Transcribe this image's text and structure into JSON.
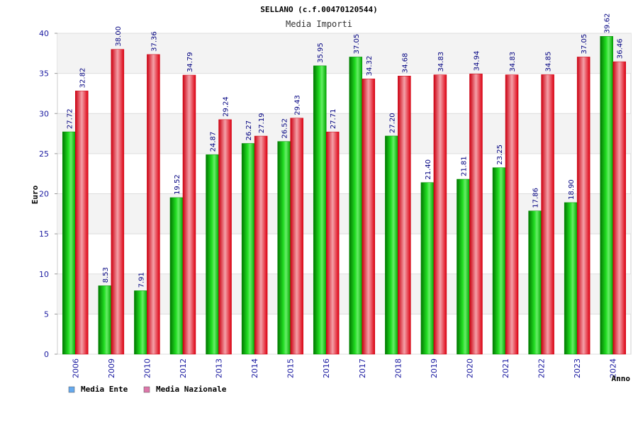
{
  "chart_data": {
    "type": "bar",
    "title": "SELLANO (c.f.00470120544)",
    "subtitle": "Media Importi",
    "xlabel": "Anno",
    "ylabel": "Euro",
    "ylim": [
      0,
      40
    ],
    "yticks": [
      "0",
      "5",
      "10",
      "15",
      "20",
      "25",
      "30",
      "35",
      "40"
    ],
    "grid": true,
    "legend_position": "bottom-left",
    "categories": [
      "2006",
      "2009",
      "2010",
      "2012",
      "2013",
      "2014",
      "2015",
      "2016",
      "2017",
      "2018",
      "2019",
      "2020",
      "2021",
      "2022",
      "2023",
      "2024"
    ],
    "series": [
      {
        "name": "Media Ente",
        "color": "#00bb00",
        "legend_color": "#66aaee",
        "values": [
          27.72,
          8.53,
          7.91,
          19.52,
          24.87,
          26.27,
          26.52,
          35.95,
          37.05,
          27.2,
          21.4,
          21.81,
          23.25,
          17.86,
          18.9,
          39.62
        ],
        "labels": [
          "27.72",
          "8.53",
          "7.91",
          "19.52",
          "24.87",
          "26.27",
          "26.52",
          "35.95",
          "37.05",
          "27.20",
          "21.40",
          "21.81",
          "23.25",
          "17.86",
          "18.90",
          "39.62"
        ]
      },
      {
        "name": "Media Nazionale",
        "color": "#ee1122",
        "legend_color": "#dd77aa",
        "values": [
          32.82,
          38.0,
          37.36,
          34.79,
          29.24,
          27.19,
          29.43,
          27.71,
          34.32,
          34.68,
          34.83,
          34.94,
          34.83,
          34.85,
          37.05,
          36.46
        ],
        "labels": [
          "32.82",
          "38.00",
          "37.36",
          "34.79",
          "29.24",
          "27.19",
          "29.43",
          "27.71",
          "34.32",
          "34.68",
          "34.83",
          "34.94",
          "34.83",
          "34.85",
          "37.05",
          "36.46"
        ]
      }
    ]
  }
}
